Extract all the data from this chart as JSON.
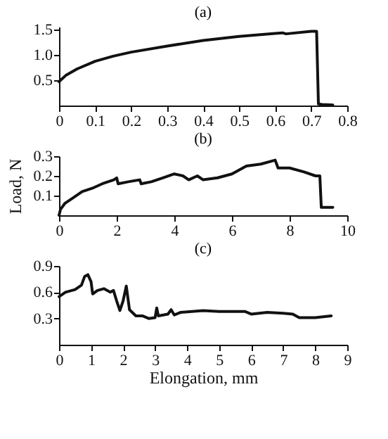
{
  "chart_data": [
    {
      "type": "line",
      "title": "(a)",
      "xlim": [
        0,
        0.8
      ],
      "ylim": [
        0,
        1.55
      ],
      "xticks": [
        {
          "value": 0,
          "label": "0"
        },
        0.1,
        0.2,
        0.3,
        0.4,
        0.5,
        0.6,
        0.7,
        0.8
      ],
      "yticks": [
        0.5,
        {
          "value": 1,
          "label": "1.0"
        },
        1.5
      ],
      "grid": false,
      "marker": "none",
      "line_style": "solid",
      "series": [
        {
          "color": "#111111",
          "x": [
            0,
            0.02,
            0.05,
            0.1,
            0.15,
            0.2,
            0.3,
            0.4,
            0.5,
            0.6,
            0.62,
            0.63,
            0.7,
            0.715,
            0.72,
            0.73,
            0.76
          ],
          "values": [
            0.47,
            0.6,
            0.72,
            0.87,
            0.97,
            1.05,
            1.17,
            1.28,
            1.36,
            1.42,
            1.43,
            1.41,
            1.46,
            1.46,
            0.03,
            0.02,
            0.01
          ]
        }
      ]
    },
    {
      "type": "line",
      "title": "(b)",
      "ylabel": "Load, N",
      "xlim": [
        0,
        10
      ],
      "ylim": [
        0,
        0.3
      ],
      "xticks": [
        0,
        2,
        4,
        6,
        8,
        10
      ],
      "yticks": [
        0.1,
        0.2,
        0.3
      ],
      "grid": false,
      "marker": "none",
      "line_style": "solid",
      "series": [
        {
          "color": "#111111",
          "x": [
            0,
            0.05,
            0.2,
            0.5,
            0.8,
            1.2,
            1.5,
            1.9,
            2.0,
            2.05,
            2.4,
            2.8,
            2.85,
            3.2,
            3.6,
            4.0,
            4.3,
            4.5,
            4.8,
            5.0,
            5.5,
            6.0,
            6.5,
            7.0,
            7.5,
            7.6,
            8.0,
            8.5,
            8.9,
            9.05,
            9.1,
            9.5
          ],
          "values": [
            0,
            0.03,
            0.06,
            0.09,
            0.12,
            0.14,
            0.16,
            0.18,
            0.19,
            0.16,
            0.17,
            0.18,
            0.16,
            0.17,
            0.19,
            0.21,
            0.2,
            0.18,
            0.2,
            0.18,
            0.19,
            0.21,
            0.25,
            0.26,
            0.28,
            0.24,
            0.24,
            0.22,
            0.2,
            0.2,
            0.04,
            0.04
          ]
        }
      ]
    },
    {
      "type": "line",
      "title": "(c)",
      "xlabel": "Elongation, mm",
      "xlim": [
        0,
        9
      ],
      "ylim": [
        0,
        0.9
      ],
      "xticks": [
        0,
        1,
        2,
        3,
        4,
        5,
        6,
        7,
        8,
        9
      ],
      "yticks": [
        0.3,
        0.6,
        0.9
      ],
      "grid": false,
      "marker": "none",
      "line_style": "solid",
      "series": [
        {
          "color": "#111111",
          "x": [
            0,
            0.2,
            0.5,
            0.7,
            0.8,
            0.9,
            1.0,
            1.05,
            1.2,
            1.4,
            1.6,
            1.7,
            1.8,
            1.9,
            2.0,
            2.1,
            2.2,
            2.4,
            2.6,
            2.8,
            3.0,
            3.05,
            3.1,
            3.4,
            3.5,
            3.6,
            3.8,
            4.5,
            5.0,
            5.8,
            6.0,
            6.5,
            7.0,
            7.3,
            7.5,
            8.0,
            8.5
          ],
          "values": [
            0.55,
            0.6,
            0.63,
            0.68,
            0.78,
            0.8,
            0.72,
            0.58,
            0.62,
            0.64,
            0.6,
            0.62,
            0.5,
            0.39,
            0.5,
            0.67,
            0.4,
            0.33,
            0.33,
            0.3,
            0.31,
            0.42,
            0.33,
            0.35,
            0.4,
            0.34,
            0.37,
            0.39,
            0.38,
            0.38,
            0.35,
            0.37,
            0.36,
            0.35,
            0.31,
            0.31,
            0.33
          ]
        }
      ]
    }
  ]
}
